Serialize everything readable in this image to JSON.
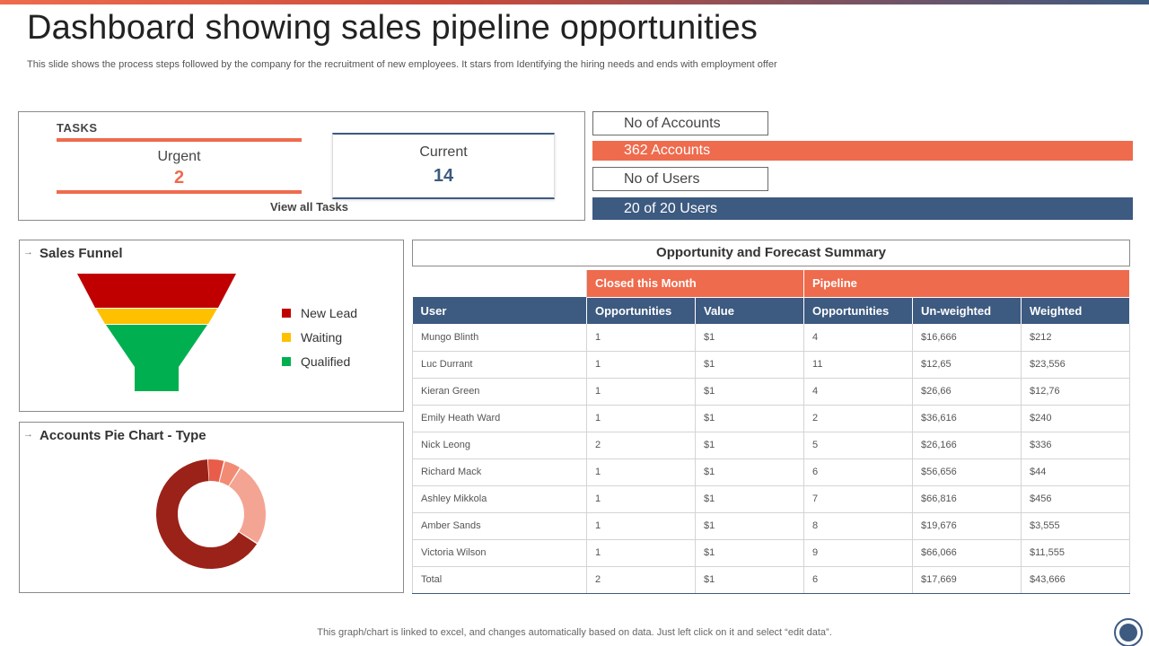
{
  "header": {
    "title": "Dashboard showing sales pipeline opportunities",
    "subtitle": "This slide shows the process steps followed by the company for the recruitment of new employees. It stars from Identifying the hiring needs and ends with employment offer"
  },
  "tasks": {
    "label": "TASKS",
    "urgent_label": "Urgent",
    "urgent_value": "2",
    "current_label": "Current",
    "current_value": "14",
    "view_all": "View all Tasks"
  },
  "stats": {
    "accounts_label": "No of Accounts",
    "accounts_value": "362 Accounts",
    "users_label": "No of Users",
    "users_value": "20 of 20 Users"
  },
  "funnel": {
    "title": "Sales Funnel",
    "legend": [
      {
        "label": "New Lead",
        "color": "#c00000"
      },
      {
        "label": "Waiting",
        "color": "#ffc000"
      },
      {
        "label": "Qualified",
        "color": "#00b050"
      }
    ]
  },
  "pie": {
    "title": "Accounts Pie Chart - Type"
  },
  "chart_data": [
    {
      "type": "funnel",
      "title": "Sales Funnel",
      "categories": [
        "New Lead",
        "Waiting",
        "Qualified"
      ],
      "colors": [
        "#c00000",
        "#ffc000",
        "#00b050"
      ]
    },
    {
      "type": "pie",
      "title": "Accounts Pie Chart - Type",
      "values": [
        0.05,
        0.05,
        0.25,
        0.65
      ],
      "colors": [
        "#e85d4a",
        "#f28b73",
        "#f4a493",
        "#9b2218"
      ]
    }
  ],
  "table": {
    "title": "Opportunity and Forecast Summary",
    "groups": {
      "closed": "Closed this Month",
      "pipeline": "Pipeline"
    },
    "headers": [
      "User",
      "Opportunities",
      "Value",
      "Opportunities",
      "Un-weighted",
      "Weighted"
    ],
    "rows": [
      [
        "Mungo Blinth",
        "1",
        "$1",
        "4",
        "$16,666",
        "$212"
      ],
      [
        "Luc Durrant",
        "1",
        "$1",
        "11",
        "$12,65",
        "$23,556"
      ],
      [
        "Kieran Green",
        "1",
        "$1",
        "4",
        "$26,66",
        "$12,76"
      ],
      [
        "Emily  Heath Ward",
        "1",
        "$1",
        "2",
        "$36,616",
        "$240"
      ],
      [
        "Nick Leong",
        "2",
        "$1",
        "5",
        "$26,166",
        "$336"
      ],
      [
        "Richard Mack",
        "1",
        "$1",
        "6",
        "$56,656",
        "$44"
      ],
      [
        "Ashley Mikkola",
        "1",
        "$1",
        "7",
        "$66,816",
        "$456"
      ],
      [
        "Amber Sands",
        "1",
        "$1",
        "8",
        "$19,676",
        "$3,555"
      ],
      [
        "Victoria Wilson",
        "1",
        "$1",
        "9",
        "$66,066",
        "$11,555"
      ],
      [
        "Total",
        "2",
        "$1",
        "6",
        "$17,669",
        "$43,666"
      ]
    ]
  },
  "footer": {
    "note": "This graph/chart is linked to excel,  and changes automatically based on data. Just left click on it and select “edit data”."
  },
  "colors": {
    "accent_orange": "#ee6b4d",
    "accent_navy": "#3d5a80"
  }
}
